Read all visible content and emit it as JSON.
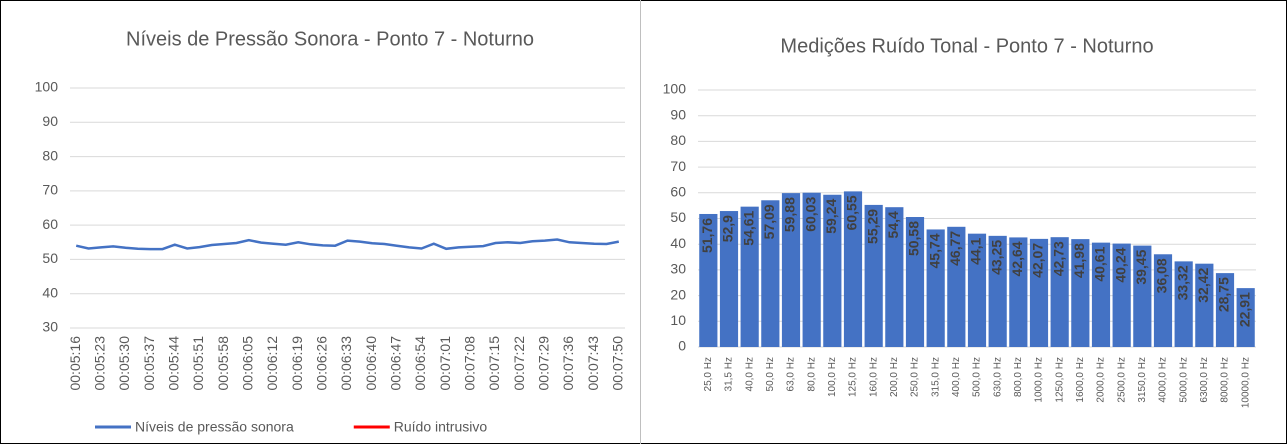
{
  "chart_data": [
    {
      "type": "line",
      "title": "Níveis de Pressão Sonora - Ponto 7 - Noturno",
      "categories": [
        "00:05:16",
        null,
        "00:05:23",
        null,
        "00:05:30",
        null,
        "00:05:37",
        null,
        "00:05:44",
        null,
        "00:05:51",
        null,
        "00:05:58",
        null,
        "00:06:05",
        null,
        "00:06:12",
        null,
        "00:06:19",
        null,
        "00:06:26",
        null,
        "00:06:33",
        null,
        "00:06:40",
        null,
        "00:06:47",
        null,
        "00:06:54",
        null,
        "00:07:01",
        null,
        "00:07:08",
        null,
        "00:07:15",
        null,
        "00:07:22",
        null,
        "00:07:29",
        null,
        "00:07:36",
        null,
        "00:07:43",
        null,
        "00:07:50"
      ],
      "series": [
        {
          "name": "Níveis de pressão sonora",
          "color": "#4472c4",
          "values": [
            54,
            53.2,
            53.5,
            53.8,
            53.4,
            53.1,
            53,
            53,
            54.3,
            53.2,
            53.6,
            54.2,
            54.5,
            54.8,
            55.6,
            54.9,
            54.6,
            54.3,
            55,
            54.4,
            54.1,
            54,
            55.5,
            55.2,
            54.7,
            54.5,
            54,
            53.5,
            53.2,
            54.6,
            53.1,
            53.5,
            53.7,
            53.9,
            54.8,
            55,
            54.8,
            55.3,
            55.5,
            55.8,
            55,
            54.8,
            54.6,
            54.5,
            55.2
          ]
        },
        {
          "name": "Ruído intrusivo",
          "color": "#ff0000",
          "values": [
            null,
            null,
            null,
            null,
            null,
            null,
            null,
            null,
            null,
            null,
            null,
            null,
            null,
            null,
            null,
            null,
            null,
            null,
            null,
            null,
            null,
            null,
            null,
            null,
            null,
            null,
            null,
            null,
            null,
            null,
            null,
            null,
            null,
            null,
            null,
            null,
            null,
            null,
            null,
            null,
            null,
            null,
            null,
            null,
            null
          ]
        }
      ],
      "ylim": [
        30,
        100
      ],
      "yticks": [
        30,
        40,
        50,
        60,
        70,
        80,
        90,
        100
      ],
      "grid": true,
      "legend": "bottom"
    },
    {
      "type": "bar",
      "title": "Medições Ruído Tonal - Ponto 7 - Noturno",
      "categories": [
        "25,0 Hz",
        "31,5 Hz",
        "40,0 Hz",
        "50,0 Hz",
        "63,0 Hz",
        "80,0 Hz",
        "100,0 Hz",
        "125,0 Hz",
        "160,0 Hz",
        "200,0 Hz",
        "250,0 Hz",
        "315,0 Hz",
        "400,0 Hz",
        "500,0 Hz",
        "630,0 Hz",
        "800,0 Hz",
        "1000,0 Hz",
        "1250,0 Hz",
        "1600,0 Hz",
        "2000,0 Hz",
        "2500,0 Hz",
        "3150,0 Hz",
        "4000,0 Hz",
        "5000,0 Hz",
        "6300,0 Hz",
        "8000,0 Hz",
        "10000,0 Hz"
      ],
      "values": [
        51.76,
        52.9,
        54.61,
        57.09,
        59.88,
        60.03,
        59.24,
        60.55,
        55.29,
        54.4,
        50.58,
        45.74,
        46.77,
        44.1,
        43.25,
        42.64,
        42.07,
        42.73,
        41.98,
        40.61,
        40.24,
        39.45,
        36.08,
        33.32,
        32.42,
        28.75,
        22.91
      ],
      "value_labels": [
        "51,76",
        "52,9",
        "54,61",
        "57,09",
        "59,88",
        "60,03",
        "59,24",
        "60,55",
        "55,29",
        "54,4",
        "50,58",
        "45,74",
        "46,77",
        "44,1",
        "43,25",
        "42,64",
        "42,07",
        "42,73",
        "41,98",
        "40,61",
        "40,24",
        "39,45",
        "36,08",
        "33,32",
        "32,42",
        "28,75",
        "22,91"
      ],
      "color": "#4472c4",
      "ylim": [
        0,
        100
      ],
      "yticks": [
        0,
        10,
        20,
        30,
        40,
        50,
        60,
        70,
        80,
        90,
        100
      ],
      "grid": true
    }
  ]
}
